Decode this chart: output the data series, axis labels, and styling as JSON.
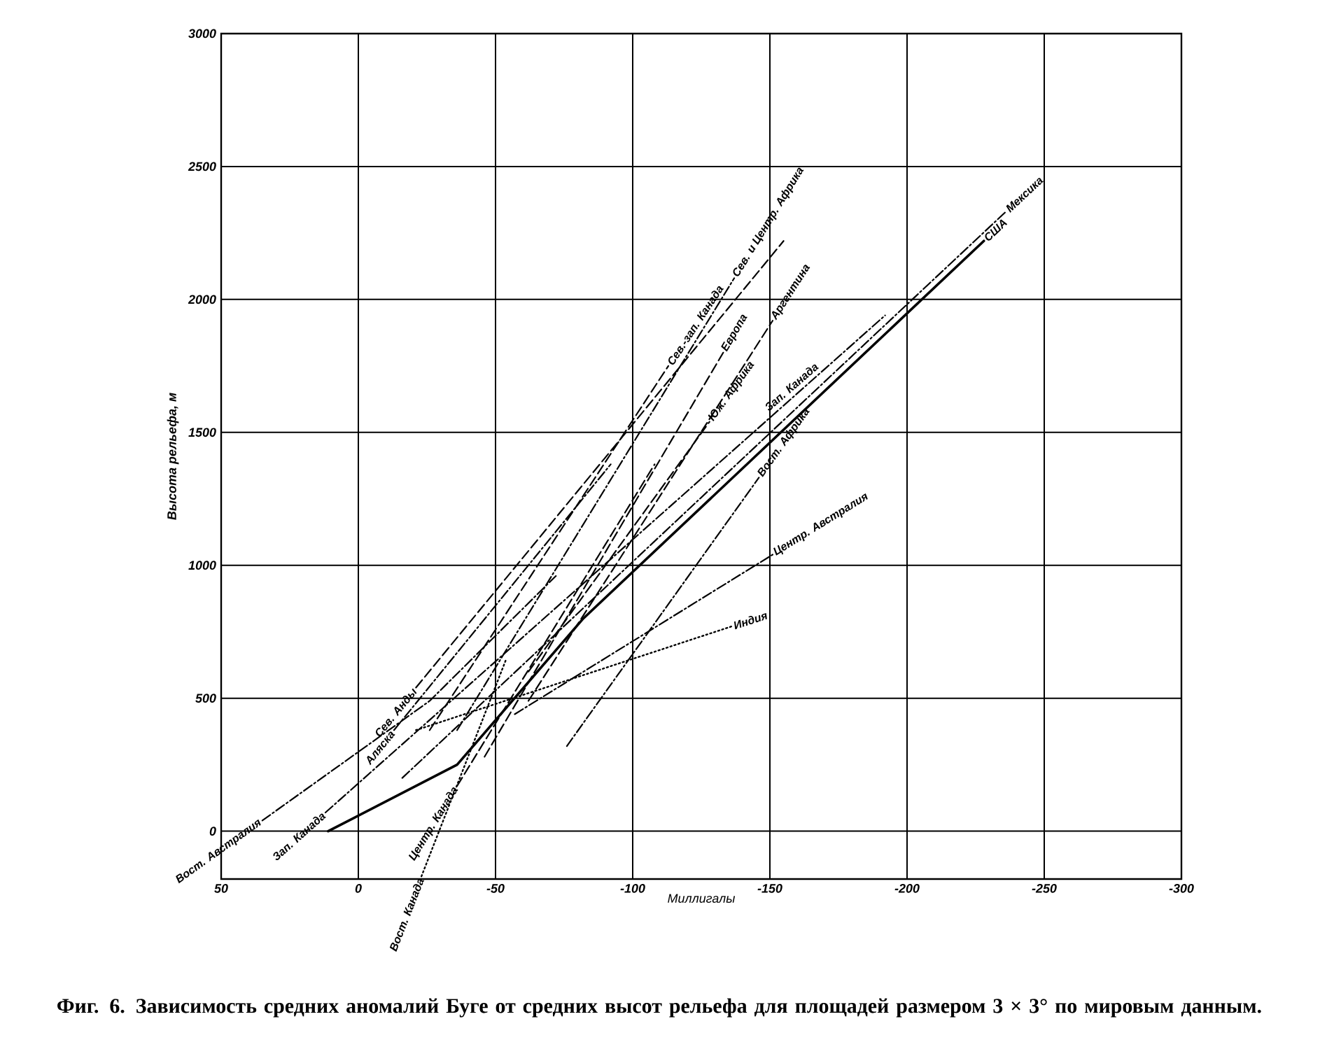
{
  "chart_data": {
    "type": "line",
    "title": "Фиг. 6. Зависимость средних аномалий Буге от средних высот рельефа для площадей размером 3 × 3° по мировым данным.",
    "xlabel": "Миллигалы",
    "ylabel": "Высота рельефа, м",
    "xlim": [
      50,
      -300
    ],
    "ylim": [
      -180,
      3000
    ],
    "xticks": [
      50,
      0,
      -50,
      -100,
      -150,
      -200,
      -250,
      -300
    ],
    "yticks": [
      0,
      500,
      1000,
      1500,
      2000,
      2500,
      3000
    ],
    "grid": true,
    "series": [
      {
        "name": "Сев. Анды",
        "color": "#000000",
        "line_style": "dashed",
        "x": [
          -21,
          -155
        ],
        "values": [
          540,
          2220
        ]
      },
      {
        "name": "Аляска",
        "color": "#000000",
        "line_style": "dashdot",
        "x": [
          -13,
          -92
        ],
        "values": [
          380,
          1380
        ]
      },
      {
        "name": "Сев.-зап. Канада",
        "color": "#000000",
        "line_style": "dashed",
        "x": [
          -26,
          -113
        ],
        "values": [
          380,
          1750
        ]
      },
      {
        "name": "Сев. и Центр. Африка",
        "color": "#000000",
        "line_style": "dashdot",
        "x": [
          -36,
          -137
        ],
        "values": [
          380,
          2080
        ]
      },
      {
        "name": "Европа",
        "color": "#000000",
        "line_style": "dashed",
        "x": [
          -46,
          -133
        ],
        "values": [
          280,
          1800
        ]
      },
      {
        "name": "Аргентина",
        "color": "#000000",
        "line_style": "dashed",
        "x": [
          -62,
          -151
        ],
        "values": [
          490,
          1920
        ]
      },
      {
        "name": "Центр. Канада",
        "color": "#000000",
        "line_style": "dashed",
        "x": [
          -36,
          -108
        ],
        "values": [
          170,
          1380
        ]
      },
      {
        "name": "Юж. Африка",
        "color": "#000000",
        "line_style": "dashed",
        "x": [
          -62,
          -128
        ],
        "values": [
          600,
          1540
        ]
      },
      {
        "name": "Зап. Канада",
        "color": "#000000",
        "line_style": "dashdot",
        "x": [
          12,
          -192
        ],
        "values": [
          70,
          1940
        ]
      },
      {
        "name": "США",
        "color": "#000000",
        "line_style": "solid",
        "x": [
          11,
          -36,
          -82,
          -228
        ],
        "values": [
          0,
          250,
          800,
          2220
        ]
      },
      {
        "name": "Мексика",
        "color": "#000000",
        "line_style": "dashdot",
        "x": [
          -16,
          -236
        ],
        "values": [
          200,
          2330
        ]
      },
      {
        "name": "Вост. Африка",
        "color": "#000000",
        "line_style": "dashdot",
        "x": [
          -76,
          -146
        ],
        "values": [
          320,
          1330
        ]
      },
      {
        "name": "Центр. Австралия",
        "color": "#000000",
        "line_style": "dashdot",
        "x": [
          -57,
          -151
        ],
        "values": [
          440,
          1040
        ]
      },
      {
        "name": "Индия",
        "color": "#000000",
        "line_style": "dotted",
        "x": [
          -21,
          -136
        ],
        "values": [
          380,
          770
        ]
      },
      {
        "name": "Вост. Канада",
        "color": "#000000",
        "line_style": "dotted",
        "x": [
          -23,
          -54
        ],
        "values": [
          -170,
          650
        ]
      },
      {
        "name": "Вост. Австралия",
        "color": "#000000",
        "line_style": "dashdot",
        "x": [
          35,
          -26,
          -72
        ],
        "values": [
          40,
          490,
          960
        ]
      }
    ],
    "annotations": [
      {
        "text": "Зап. Канада",
        "x": -160,
        "y": 1646
      }
    ]
  }
}
